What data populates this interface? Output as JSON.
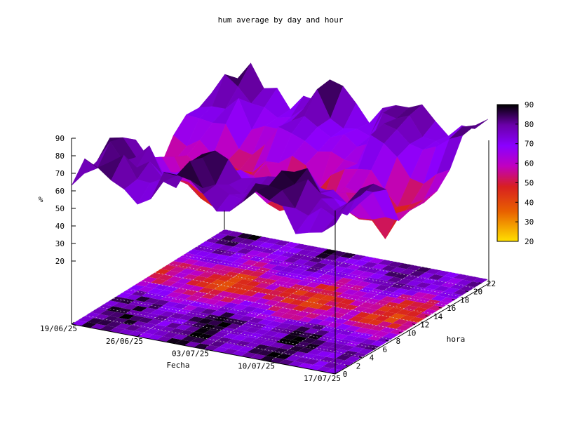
{
  "chart_data": {
    "type": "heatmap",
    "title": "hum average by day and hour",
    "xlabel": "Fecha",
    "ylabel": "hora",
    "zlabel": "%",
    "x_tick_labels": [
      "19/06/25",
      "26/06/25",
      "03/07/25",
      "10/07/25",
      "17/07/25"
    ],
    "y_tick_labels": [
      "0",
      "2",
      "4",
      "6",
      "8",
      "10",
      "12",
      "14",
      "16",
      "18",
      "20",
      "22"
    ],
    "z_tick_labels": [
      "20",
      "30",
      "40",
      "50",
      "60",
      "70",
      "80",
      "90"
    ],
    "zlim": [
      20,
      90
    ],
    "cbrange": [
      20,
      90
    ],
    "colorbar_labels": [
      "90",
      "80",
      "70",
      "60",
      "50",
      "40",
      "30",
      "20"
    ],
    "x_dates": [
      "2025-06-19",
      "2025-07-17"
    ],
    "hours": [
      0,
      1,
      2,
      3,
      4,
      5,
      6,
      7,
      8,
      9,
      10,
      11,
      12,
      13,
      14,
      15,
      16,
      17,
      18,
      19,
      20,
      21,
      22,
      23
    ],
    "surface_profile_by_hour": [
      78,
      79,
      80,
      80,
      80,
      79,
      78,
      75,
      70,
      64,
      58,
      54,
      51,
      50,
      51,
      53,
      57,
      62,
      67,
      71,
      74,
      76,
      77,
      78
    ],
    "palette": [
      "#000000",
      "#6a00a8",
      "#8a00ff",
      "#c000c0",
      "#d82020",
      "#e86000",
      "#ffe000"
    ],
    "grid": true,
    "view": "3d surface with map projection at base"
  }
}
